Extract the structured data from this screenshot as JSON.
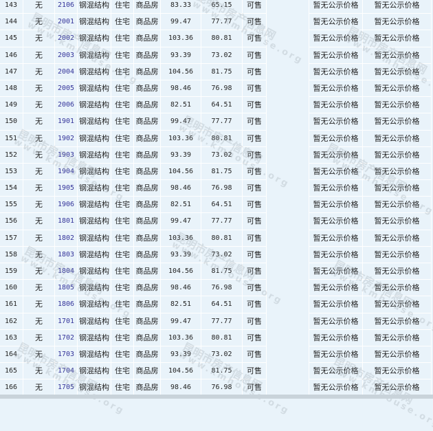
{
  "columns_static": {
    "floor_col": "无",
    "structure": "钢混结构",
    "usage": "住宅",
    "type": "商品房",
    "status": "可售",
    "price1": "暂无公示价格",
    "price2": "暂无公示价格"
  },
  "colors": {
    "background": "#e9f3fa",
    "room_link": "#33339a",
    "border": "#ffffff"
  },
  "watermark": {
    "cn": "昆明市房产信息网",
    "en": "www.kmhouse.org"
  },
  "rows": [
    {
      "no": "143",
      "room": "2106",
      "area": "83.33",
      "inner": "65.15"
    },
    {
      "no": "144",
      "room": "2001",
      "area": "99.47",
      "inner": "77.77"
    },
    {
      "no": "145",
      "room": "2002",
      "area": "103.36",
      "inner": "80.81"
    },
    {
      "no": "146",
      "room": "2003",
      "area": "93.39",
      "inner": "73.02"
    },
    {
      "no": "147",
      "room": "2004",
      "area": "104.56",
      "inner": "81.75"
    },
    {
      "no": "148",
      "room": "2005",
      "area": "98.46",
      "inner": "76.98"
    },
    {
      "no": "149",
      "room": "2006",
      "area": "82.51",
      "inner": "64.51"
    },
    {
      "no": "150",
      "room": "1901",
      "area": "99.47",
      "inner": "77.77"
    },
    {
      "no": "151",
      "room": "1902",
      "area": "103.36",
      "inner": "80.81"
    },
    {
      "no": "152",
      "room": "1903",
      "area": "93.39",
      "inner": "73.02"
    },
    {
      "no": "153",
      "room": "1904",
      "area": "104.56",
      "inner": "81.75"
    },
    {
      "no": "154",
      "room": "1905",
      "area": "98.46",
      "inner": "76.98"
    },
    {
      "no": "155",
      "room": "1906",
      "area": "82.51",
      "inner": "64.51"
    },
    {
      "no": "156",
      "room": "1801",
      "area": "99.47",
      "inner": "77.77"
    },
    {
      "no": "157",
      "room": "1802",
      "area": "103.36",
      "inner": "80.81"
    },
    {
      "no": "158",
      "room": "1803",
      "area": "93.39",
      "inner": "73.02"
    },
    {
      "no": "159",
      "room": "1804",
      "area": "104.56",
      "inner": "81.75"
    },
    {
      "no": "160",
      "room": "1805",
      "area": "98.46",
      "inner": "76.98"
    },
    {
      "no": "161",
      "room": "1806",
      "area": "82.51",
      "inner": "64.51"
    },
    {
      "no": "162",
      "room": "1701",
      "area": "99.47",
      "inner": "77.77"
    },
    {
      "no": "163",
      "room": "1702",
      "area": "103.36",
      "inner": "80.81"
    },
    {
      "no": "164",
      "room": "1703",
      "area": "93.39",
      "inner": "73.02"
    },
    {
      "no": "165",
      "room": "1704",
      "area": "104.56",
      "inner": "81.75"
    },
    {
      "no": "166",
      "room": "1705",
      "area": "98.46",
      "inner": "76.98"
    }
  ]
}
